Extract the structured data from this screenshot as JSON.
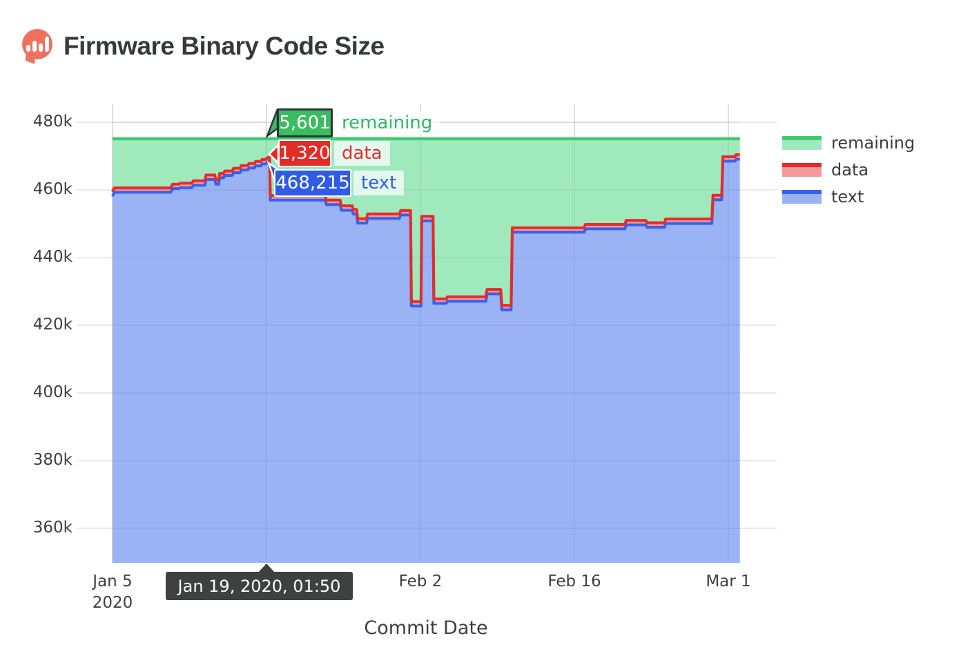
{
  "header": {
    "title": "Firmware Binary Code Size",
    "logo": "bar-chart-pin-icon"
  },
  "colors": {
    "remaining_line": "#3ecb70",
    "remaining_fill": "#9fe9bd",
    "data_line": "#e62b2b",
    "data_fill": "#f49a9c",
    "text_line": "#3560f0",
    "text_fill": "#9ab3f5",
    "grid": "#e3e3e3",
    "axis_text": "#3d3f42",
    "tooltip_bg": "#3f4040",
    "logo": "#ef7160",
    "callout_remaining_bg": "#3cbb61",
    "callout_data_bg": "#e32b27",
    "callout_text_bg": "#2f5be5"
  },
  "legend": {
    "items": [
      {
        "label": "remaining"
      },
      {
        "label": "data"
      },
      {
        "label": "text"
      }
    ]
  },
  "tooltips": {
    "date": "Jan 19, 2020, 01:50",
    "remaining": {
      "value": "5,601",
      "label": "remaining"
    },
    "data": {
      "value": "1,320",
      "label": "data"
    },
    "text": {
      "value": "468,215",
      "label": "text"
    }
  },
  "chart_data": {
    "type": "area",
    "stacked": true,
    "title": "Firmware Binary Code Size",
    "xlabel": "Commit Date",
    "ylabel": "",
    "legend_position": "right",
    "grid": true,
    "series_names": [
      "remaining",
      "data",
      "text"
    ],
    "total_budget": 475136,
    "data_size": 1320,
    "remaining_rule": "remaining = total_budget - text - data (flat cap line at 475,136)",
    "x_unit": "days since Jan 5 2020",
    "ylim": [
      349800,
      485510
    ],
    "y_grid": [
      360000,
      380000,
      400000,
      420000,
      440000,
      460000,
      480000
    ],
    "x_grid_days": [
      0,
      14,
      28,
      42,
      56
    ],
    "y_ticks": [
      {
        "value": 480000,
        "label": "480k"
      },
      {
        "value": 460000,
        "label": "460k"
      },
      {
        "value": 440000,
        "label": "440k"
      },
      {
        "value": 420000,
        "label": "420k"
      },
      {
        "value": 400000,
        "label": "400k"
      },
      {
        "value": 380000,
        "label": "380k"
      },
      {
        "value": 360000,
        "label": "360k"
      }
    ],
    "x_ticks": [
      {
        "day": 0,
        "label": "Jan 5",
        "sub": "2020"
      },
      {
        "day": 28,
        "label": "Feb 2"
      },
      {
        "day": 42,
        "label": "Feb 16"
      },
      {
        "day": 56,
        "label": "Mar 1"
      }
    ],
    "highlight": {
      "day": 14.07,
      "date": "Jan 19, 2020, 01:50",
      "text": 468215,
      "data": 1320,
      "remaining": 5601
    },
    "points": [
      [
        0.0,
        458080
      ],
      [
        0.15,
        459280
      ],
      [
        5.3,
        459280
      ],
      [
        5.45,
        460380
      ],
      [
        6.05,
        460380
      ],
      [
        6.15,
        460680
      ],
      [
        7.2,
        460680
      ],
      [
        7.35,
        461380
      ],
      [
        8.4,
        461380
      ],
      [
        8.5,
        463080
      ],
      [
        9.3,
        463080
      ],
      [
        9.4,
        461680
      ],
      [
        9.65,
        461680
      ],
      [
        9.75,
        463580
      ],
      [
        10.1,
        463580
      ],
      [
        10.2,
        464280
      ],
      [
        10.9,
        464280
      ],
      [
        11.0,
        465080
      ],
      [
        11.6,
        465080
      ],
      [
        11.7,
        465880
      ],
      [
        12.3,
        465880
      ],
      [
        12.4,
        466480
      ],
      [
        12.9,
        466480
      ],
      [
        13.0,
        467080
      ],
      [
        13.5,
        467080
      ],
      [
        13.6,
        467680
      ],
      [
        13.95,
        467680
      ],
      [
        14.07,
        468215
      ],
      [
        14.28,
        468215
      ],
      [
        14.35,
        456980
      ],
      [
        19.35,
        456980
      ],
      [
        19.45,
        455680
      ],
      [
        20.7,
        455680
      ],
      [
        20.8,
        453980
      ],
      [
        21.8,
        453980
      ],
      [
        21.9,
        452880
      ],
      [
        22.2,
        452880
      ],
      [
        22.3,
        450180
      ],
      [
        23.1,
        450180
      ],
      [
        23.2,
        451580
      ],
      [
        26.1,
        451580
      ],
      [
        26.2,
        452580
      ],
      [
        27.1,
        452580
      ],
      [
        27.18,
        425680
      ],
      [
        28.05,
        425680
      ],
      [
        28.12,
        450880
      ],
      [
        29.15,
        450880
      ],
      [
        29.22,
        426480
      ],
      [
        30.35,
        426480
      ],
      [
        30.45,
        427080
      ],
      [
        33.95,
        427080
      ],
      [
        34.05,
        429280
      ],
      [
        35.3,
        429280
      ],
      [
        35.4,
        424580
      ],
      [
        36.25,
        424580
      ],
      [
        36.35,
        447480
      ],
      [
        42.9,
        447480
      ],
      [
        43.0,
        448480
      ],
      [
        46.6,
        448480
      ],
      [
        46.7,
        449680
      ],
      [
        48.5,
        449680
      ],
      [
        48.6,
        448980
      ],
      [
        50.2,
        448980
      ],
      [
        50.3,
        450080
      ],
      [
        54.5,
        450080
      ],
      [
        54.6,
        457080
      ],
      [
        55.4,
        457080
      ],
      [
        55.5,
        468480
      ],
      [
        56.6,
        468480
      ],
      [
        56.7,
        469080
      ],
      [
        57.05,
        469080
      ]
    ]
  }
}
